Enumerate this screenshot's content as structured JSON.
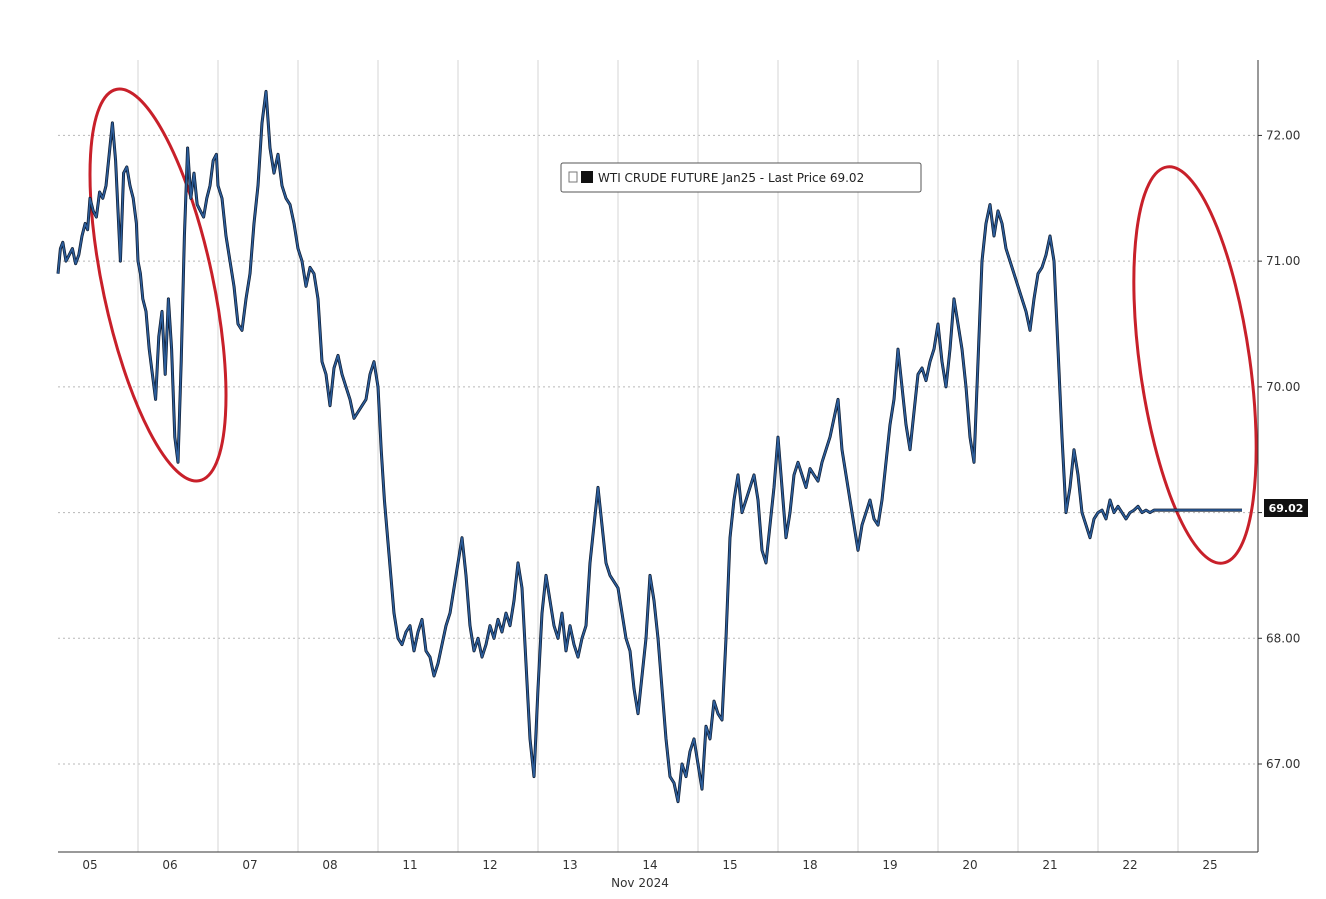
{
  "chart_data": {
    "type": "line",
    "title": "",
    "xlabel": "Nov 2024",
    "ylabel": "",
    "ylim": [
      66.3,
      72.6
    ],
    "yticks": [
      67.0,
      68.0,
      69.0,
      70.0,
      71.0,
      72.0
    ],
    "ytick_labels": [
      "67.00",
      "68.00",
      "69.00",
      "70.00",
      "71.00",
      "72.00"
    ],
    "xticks": [
      "05",
      "06",
      "07",
      "08",
      "11",
      "12",
      "13",
      "14",
      "15",
      "18",
      "19",
      "20",
      "21",
      "22",
      "25"
    ],
    "grid": true,
    "legend": {
      "position": "top-center",
      "entries": [
        "WTI CRUDE FUTURE Jan25 - Last Price 69.02"
      ]
    },
    "last_price_label": "69.02",
    "colors": {
      "line": "#2c5d9a",
      "line_shadow": "#0d1a2e",
      "highlight_ellipse": "#c8202a",
      "last_price_box": "#111111",
      "grid": "#b8b8b8"
    },
    "highlights": [
      "05-06 selloff",
      "25 selloff"
    ],
    "series": [
      {
        "name": "WTI CRUDE FUTURE Jan25 - Last Price 69.02",
        "x": [
          0.0,
          0.03,
          0.06,
          0.1,
          0.14,
          0.18,
          0.22,
          0.26,
          0.3,
          0.34,
          0.37,
          0.4,
          0.44,
          0.48,
          0.52,
          0.56,
          0.6,
          0.64,
          0.68,
          0.72,
          0.75,
          0.78,
          0.82,
          0.86,
          0.9,
          0.94,
          0.98,
          1.0,
          1.03,
          1.06,
          1.1,
          1.14,
          1.18,
          1.22,
          1.26,
          1.3,
          1.34,
          1.38,
          1.42,
          1.46,
          1.5,
          1.54,
          1.58,
          1.62,
          1.66,
          1.7,
          1.74,
          1.78,
          1.82,
          1.86,
          1.9,
          1.94,
          1.98,
          2.0,
          2.05,
          2.1,
          2.15,
          2.2,
          2.25,
          2.3,
          2.35,
          2.4,
          2.45,
          2.5,
          2.55,
          2.6,
          2.65,
          2.7,
          2.75,
          2.8,
          2.85,
          2.9,
          2.95,
          3.0,
          3.05,
          3.1,
          3.15,
          3.2,
          3.25,
          3.3,
          3.35,
          3.4,
          3.45,
          3.5,
          3.55,
          3.6,
          3.65,
          3.7,
          3.75,
          3.8,
          3.85,
          3.9,
          3.95,
          4.0,
          4.04,
          4.08,
          4.12,
          4.16,
          4.2,
          4.25,
          4.3,
          4.35,
          4.4,
          4.45,
          4.5,
          4.55,
          4.6,
          4.65,
          4.7,
          4.75,
          4.8,
          4.85,
          4.9,
          4.95,
          5.0,
          5.05,
          5.1,
          5.15,
          5.2,
          5.25,
          5.3,
          5.35,
          5.4,
          5.45,
          5.5,
          5.55,
          5.6,
          5.65,
          5.7,
          5.75,
          5.8,
          5.85,
          5.9,
          5.95,
          6.0,
          6.05,
          6.1,
          6.15,
          6.2,
          6.25,
          6.3,
          6.35,
          6.4,
          6.45,
          6.5,
          6.55,
          6.6,
          6.65,
          6.7,
          6.75,
          6.8,
          6.85,
          6.9,
          6.95,
          7.0,
          7.05,
          7.1,
          7.15,
          7.2,
          7.25,
          7.3,
          7.35,
          7.4,
          7.45,
          7.5,
          7.55,
          7.6,
          7.65,
          7.7,
          7.75,
          7.8,
          7.85,
          7.9,
          7.95,
          8.0,
          8.05,
          8.1,
          8.15,
          8.2,
          8.25,
          8.3,
          8.35,
          8.4,
          8.45,
          8.5,
          8.55,
          8.6,
          8.65,
          8.7,
          8.75,
          8.8,
          8.85,
          8.9,
          8.95,
          9.0,
          9.05,
          9.1,
          9.15,
          9.2,
          9.25,
          9.3,
          9.35,
          9.4,
          9.45,
          9.5,
          9.55,
          9.6,
          9.65,
          9.7,
          9.75,
          9.8,
          9.85,
          9.9,
          9.95,
          10.0,
          10.05,
          10.1,
          10.15,
          10.2,
          10.25,
          10.3,
          10.35,
          10.4,
          10.45,
          10.5,
          10.55,
          10.6,
          10.65,
          10.7,
          10.75,
          10.8,
          10.85,
          10.9,
          10.95,
          11.0,
          11.05,
          11.1,
          11.15,
          11.2,
          11.25,
          11.3,
          11.35,
          11.4,
          11.45,
          11.5,
          11.55,
          11.6,
          11.65,
          11.7,
          11.75,
          11.8,
          11.85,
          11.9,
          11.95,
          12.0,
          12.05,
          12.1,
          12.15,
          12.2,
          12.25,
          12.3,
          12.35,
          12.4,
          12.45,
          12.5,
          12.55,
          12.6,
          12.65,
          12.7,
          12.75,
          12.8,
          12.85,
          12.9,
          12.95,
          13.0,
          13.05,
          13.1,
          13.15,
          13.2,
          13.25,
          13.3,
          13.35,
          13.4,
          13.45,
          13.5,
          13.55,
          13.6,
          13.65,
          13.7,
          13.75,
          13.8,
          13.85,
          13.9,
          13.95,
          14.0,
          14.05,
          14.1,
          14.15,
          14.2,
          14.25,
          14.3,
          14.35,
          14.4,
          14.45,
          14.5,
          14.55,
          14.6,
          14.65,
          14.7,
          14.75,
          14.8
        ],
        "values": [
          70.9,
          71.1,
          71.15,
          71.0,
          71.05,
          71.1,
          70.98,
          71.05,
          71.2,
          71.3,
          71.25,
          71.5,
          71.4,
          71.35,
          71.55,
          71.5,
          71.6,
          71.85,
          72.1,
          71.8,
          71.4,
          71.0,
          71.7,
          71.75,
          71.6,
          71.5,
          71.3,
          71.0,
          70.9,
          70.7,
          70.6,
          70.3,
          70.1,
          69.9,
          70.4,
          70.6,
          70.1,
          70.7,
          70.3,
          69.6,
          69.4,
          70.2,
          71.2,
          71.9,
          71.5,
          71.7,
          71.45,
          71.4,
          71.35,
          71.5,
          71.6,
          71.8,
          71.85,
          71.6,
          71.5,
          71.2,
          71.0,
          70.8,
          70.5,
          70.45,
          70.7,
          70.9,
          71.3,
          71.6,
          72.1,
          72.35,
          71.9,
          71.7,
          71.85,
          71.6,
          71.5,
          71.45,
          71.3,
          71.1,
          71.0,
          70.8,
          70.95,
          70.9,
          70.7,
          70.2,
          70.1,
          69.85,
          70.15,
          70.25,
          70.1,
          70.0,
          69.9,
          69.75,
          69.8,
          69.85,
          69.9,
          70.1,
          70.2,
          70.0,
          69.5,
          69.1,
          68.8,
          68.5,
          68.2,
          68.0,
          67.95,
          68.05,
          68.1,
          67.9,
          68.05,
          68.15,
          67.9,
          67.85,
          67.7,
          67.8,
          67.95,
          68.1,
          68.2,
          68.4,
          68.6,
          68.8,
          68.5,
          68.1,
          67.9,
          68.0,
          67.85,
          67.95,
          68.1,
          68.0,
          68.15,
          68.05,
          68.2,
          68.1,
          68.3,
          68.6,
          68.4,
          67.8,
          67.2,
          66.9,
          67.6,
          68.2,
          68.5,
          68.3,
          68.1,
          68.0,
          68.2,
          67.9,
          68.1,
          67.95,
          67.85,
          68.0,
          68.1,
          68.6,
          68.9,
          69.2,
          68.9,
          68.6,
          68.5,
          68.45,
          68.4,
          68.2,
          68.0,
          67.9,
          67.6,
          67.4,
          67.7,
          68.0,
          68.5,
          68.3,
          68.0,
          67.6,
          67.2,
          66.9,
          66.85,
          66.7,
          67.0,
          66.9,
          67.1,
          67.2,
          67.0,
          66.8,
          67.3,
          67.2,
          67.5,
          67.4,
          67.35,
          68.0,
          68.8,
          69.1,
          69.3,
          69.0,
          69.1,
          69.2,
          69.3,
          69.1,
          68.7,
          68.6,
          68.9,
          69.2,
          69.6,
          69.2,
          68.8,
          69.0,
          69.3,
          69.4,
          69.3,
          69.2,
          69.35,
          69.3,
          69.25,
          69.4,
          69.5,
          69.6,
          69.75,
          69.9,
          69.5,
          69.3,
          69.1,
          68.9,
          68.7,
          68.9,
          69.0,
          69.1,
          68.95,
          68.9,
          69.1,
          69.4,
          69.7,
          69.9,
          70.3,
          70.0,
          69.7,
          69.5,
          69.8,
          70.1,
          70.15,
          70.05,
          70.2,
          70.3,
          70.5,
          70.2,
          70.0,
          70.3,
          70.7,
          70.5,
          70.3,
          70.0,
          69.6,
          69.4,
          70.2,
          71.0,
          71.3,
          71.45,
          71.2,
          71.4,
          71.3,
          71.1,
          71.0,
          70.9,
          70.8,
          70.7,
          70.6,
          70.45,
          70.7,
          70.9,
          70.95,
          71.05,
          71.2,
          71.0,
          70.3,
          69.6,
          69.0,
          69.2,
          69.5,
          69.3,
          69.0,
          68.9,
          68.8,
          68.95,
          69.0,
          69.02,
          68.95,
          69.1,
          69.0,
          69.05,
          69.0,
          68.95,
          69.0,
          69.02,
          69.05,
          69.0,
          69.02,
          69.0,
          69.02,
          69.02,
          69.02,
          69.02,
          69.02,
          69.02,
          69.02,
          69.02,
          69.02,
          69.02,
          69.02,
          69.02,
          69.02,
          69.02,
          69.02,
          69.02,
          69.02,
          69.02,
          69.02,
          69.02,
          69.02,
          69.02,
          69.02
        ]
      }
    ]
  }
}
